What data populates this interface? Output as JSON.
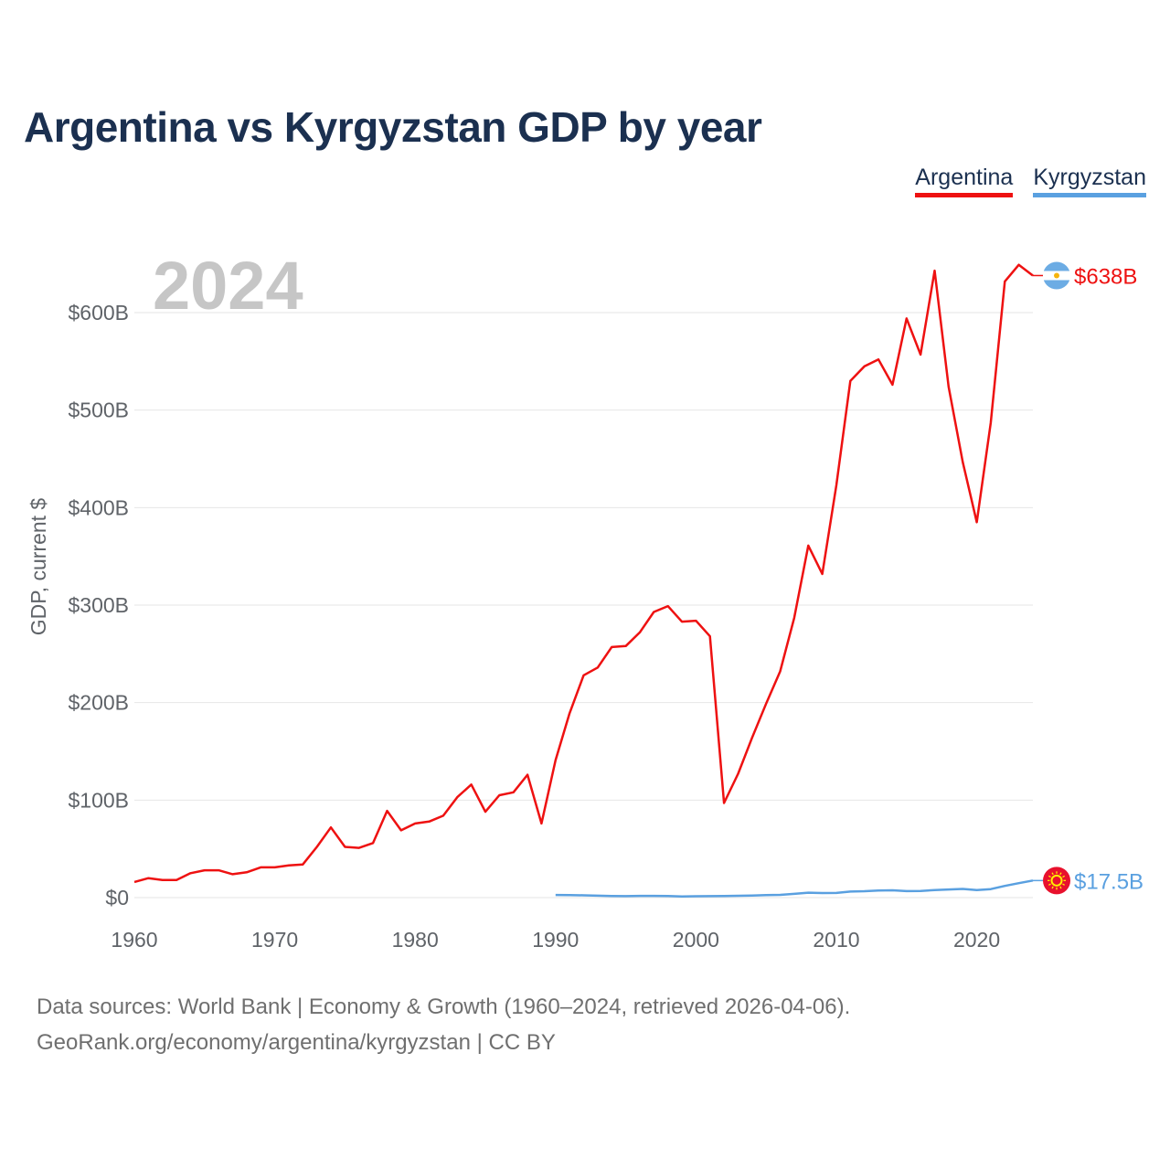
{
  "title": "Argentina vs Kyrgyzstan GDP by year",
  "footer": {
    "line1": "Data sources: World Bank | Economy & Growth (1960–2024, retrieved 2026-04-06).",
    "line2": "GeoRank.org/economy/argentina/kyrgyzstan | CC BY"
  },
  "chart_data": {
    "type": "line",
    "title": "Argentina vs Kyrgyzstan GDP by year",
    "xlabel": "",
    "ylabel": "GDP, current $",
    "xlim": [
      1960,
      2024
    ],
    "ylim": [
      0,
      650
    ],
    "yunit": "billions USD",
    "current_year_label": "2024",
    "x_ticks": [
      1960,
      1970,
      1980,
      1990,
      2000,
      2010,
      2020
    ],
    "y_ticks": [
      {
        "value": 0,
        "label": "$0"
      },
      {
        "value": 100,
        "label": "$100B"
      },
      {
        "value": 200,
        "label": "$200B"
      },
      {
        "value": 300,
        "label": "$300B"
      },
      {
        "value": 400,
        "label": "$400B"
      },
      {
        "value": 500,
        "label": "$500B"
      },
      {
        "value": 600,
        "label": "$600B"
      }
    ],
    "grid": true,
    "legend_position": "top-right",
    "series": [
      {
        "name": "Argentina",
        "color": "#ee1111",
        "end_label": "$638B",
        "x": [
          1960,
          1961,
          1962,
          1963,
          1964,
          1965,
          1966,
          1967,
          1968,
          1969,
          1970,
          1971,
          1972,
          1973,
          1974,
          1975,
          1976,
          1977,
          1978,
          1979,
          1980,
          1981,
          1982,
          1983,
          1984,
          1985,
          1986,
          1987,
          1988,
          1989,
          1990,
          1991,
          1992,
          1993,
          1994,
          1995,
          1996,
          1997,
          1998,
          1999,
          2000,
          2001,
          2002,
          2003,
          2004,
          2005,
          2006,
          2007,
          2008,
          2009,
          2010,
          2011,
          2012,
          2013,
          2014,
          2015,
          2016,
          2017,
          2018,
          2019,
          2020,
          2021,
          2022,
          2023,
          2024
        ],
        "values": [
          16,
          20,
          18,
          18,
          25,
          28,
          28,
          24,
          26,
          31,
          31,
          33,
          34,
          52,
          72,
          52,
          51,
          56,
          89,
          69,
          76,
          78,
          84,
          103,
          116,
          88,
          105,
          108,
          126,
          76,
          141,
          189,
          228,
          236,
          257,
          258,
          272,
          293,
          299,
          283,
          284,
          268,
          97,
          127,
          164,
          199,
          232,
          287,
          361,
          332,
          423,
          530,
          545,
          552,
          526,
          594,
          557,
          643,
          524,
          447,
          385,
          487,
          632,
          649,
          638
        ]
      },
      {
        "name": "Kyrgyzstan",
        "color": "#5aa0e0",
        "end_label": "$17.5B",
        "x": [
          1990,
          1991,
          1992,
          1993,
          1994,
          1995,
          1996,
          1997,
          1998,
          1999,
          2000,
          2001,
          2002,
          2003,
          2004,
          2005,
          2006,
          2007,
          2008,
          2009,
          2010,
          2011,
          2012,
          2013,
          2014,
          2015,
          2016,
          2017,
          2018,
          2019,
          2020,
          2021,
          2022,
          2023,
          2024
        ],
        "values": [
          2.7,
          2.6,
          2.3,
          2.0,
          1.7,
          1.5,
          1.8,
          1.8,
          1.6,
          1.2,
          1.4,
          1.5,
          1.6,
          1.9,
          2.2,
          2.5,
          2.8,
          3.8,
          5.1,
          4.7,
          4.8,
          6.2,
          6.6,
          7.3,
          7.5,
          6.7,
          6.8,
          7.7,
          8.3,
          8.9,
          7.8,
          8.7,
          12.0,
          14.8,
          17.5
        ]
      }
    ]
  },
  "flags": [
    {
      "country": "Argentina",
      "colors": [
        "#6cace4",
        "#ffffff",
        "#f6b40e"
      ]
    },
    {
      "country": "Kyrgyzstan",
      "colors": [
        "#e8112d",
        "#ffef00"
      ]
    }
  ]
}
